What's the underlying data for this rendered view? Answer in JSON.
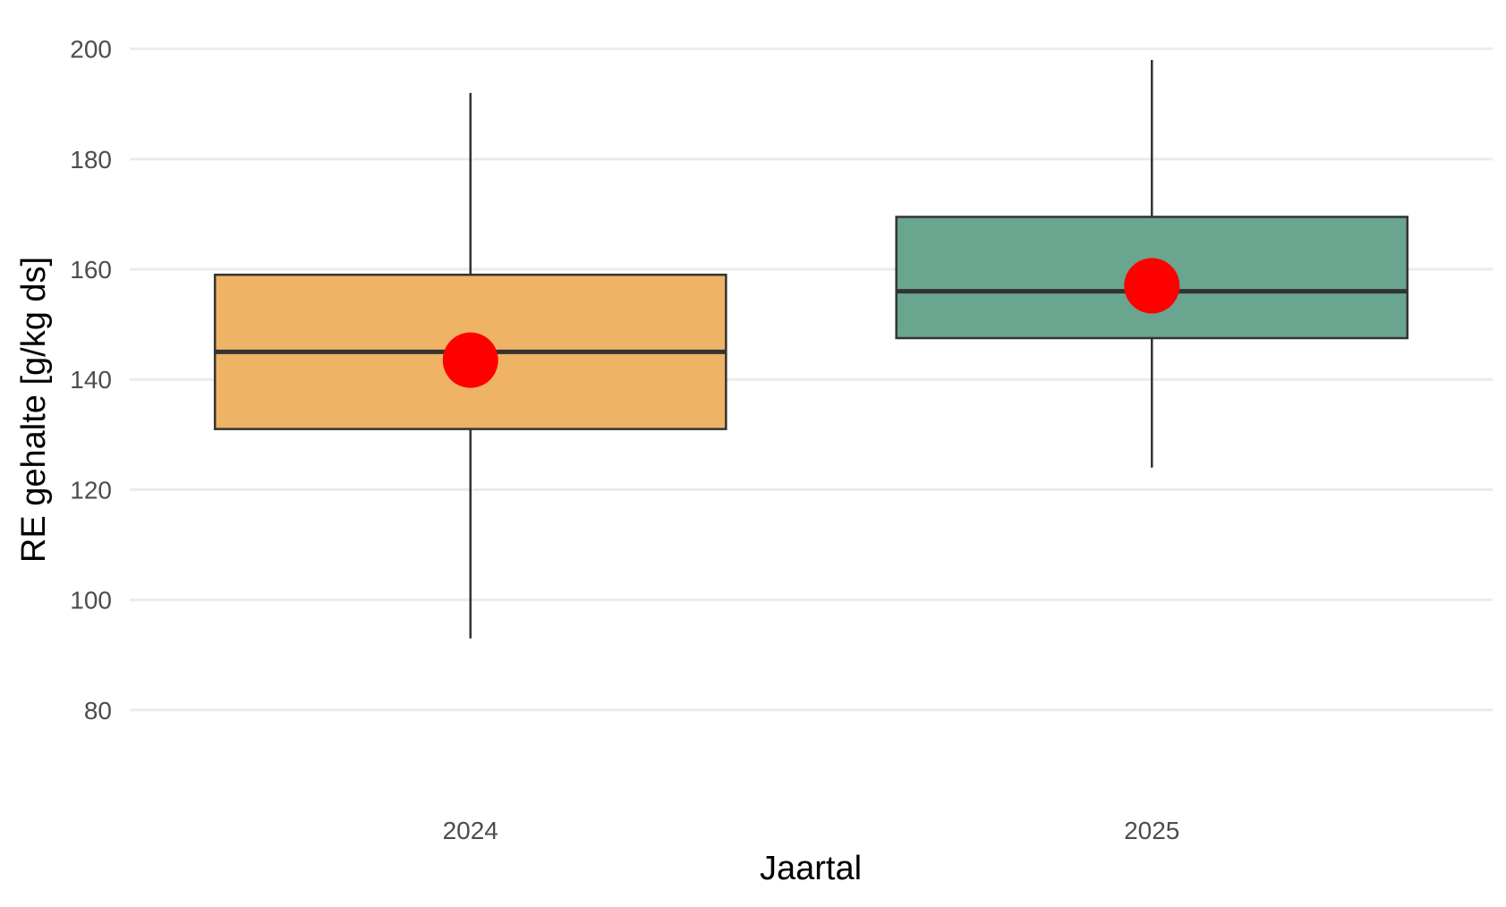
{
  "chart_data": {
    "type": "box",
    "title": "",
    "xlabel": "Jaartal",
    "ylabel": "RE gehalte [g/kg ds]",
    "ylim": [
      66,
      204
    ],
    "yticks": [
      80,
      100,
      120,
      140,
      160,
      180,
      200
    ],
    "ytick_labels": [
      "80",
      "100",
      "120",
      "140",
      "160",
      "180",
      "200"
    ],
    "grid": "horizontal",
    "legend": "none",
    "categories": [
      "2024",
      "2025"
    ],
    "boxes": [
      {
        "category": "2024",
        "min": 93,
        "q1": 131,
        "median": 145,
        "q3": 159,
        "max": 192,
        "mean": 143.5,
        "color": "#efb365"
      },
      {
        "category": "2025",
        "min": 124,
        "q1": 147.5,
        "median": 156,
        "q3": 169.5,
        "max": 198,
        "mean": 157,
        "color": "#6aa58f"
      }
    ],
    "mean_marker_color": "#ff0000"
  }
}
